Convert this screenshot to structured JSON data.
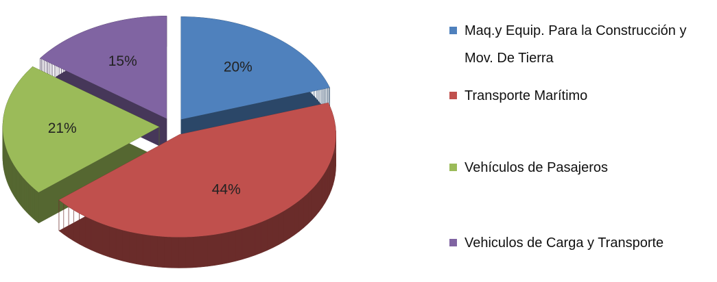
{
  "chart_data": {
    "type": "pie",
    "categories": [
      "Maq.y Equip. Para la Construcción y Mov. De Tierra",
      "Transporte Marítimo",
      "Vehículos de Pasajeros",
      "Vehiculos de Carga y Transporte"
    ],
    "values": [
      20,
      44,
      21,
      15
    ],
    "value_labels": [
      "20%",
      "44%",
      "21%",
      "15%"
    ],
    "colors": [
      "#4f81bd",
      "#c0504d",
      "#9bbb59",
      "#8064a2"
    ],
    "legend": "right"
  }
}
